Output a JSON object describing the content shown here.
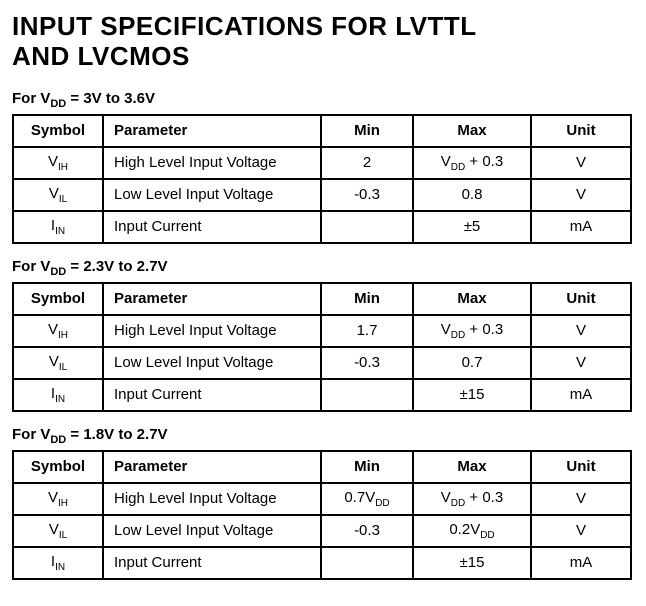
{
  "title_line1": "INPUT SPECIFICATIONS FOR LVTTL",
  "title_line2": "AND LVCMOS",
  "headers": {
    "symbol": "Symbol",
    "parameter": "Parameter",
    "min": "Min",
    "max": "Max",
    "unit": "Unit"
  },
  "sections": [
    {
      "caption_prefix": "For V",
      "caption_sub": "DD",
      "caption_suffix": " = 3V to 3.6V",
      "rows": [
        {
          "sym_pre": "V",
          "sym_sub": "IH",
          "param": "High Level Input Voltage",
          "min": "2",
          "max_pre": "V",
          "max_sub": "DD",
          "max_suffix": " + 0.3",
          "unit": "V"
        },
        {
          "sym_pre": "V",
          "sym_sub": "IL",
          "param": "Low Level Input Voltage",
          "min": "-0.3",
          "max_plain": "0.8",
          "unit": "V"
        },
        {
          "sym_pre": "I",
          "sym_sub": "IN",
          "param": "Input Current",
          "min": "",
          "max_plain": "±5",
          "unit": "mA"
        }
      ]
    },
    {
      "caption_prefix": "For V",
      "caption_sub": "DD",
      "caption_suffix": " = 2.3V to 2.7V",
      "rows": [
        {
          "sym_pre": "V",
          "sym_sub": "IH",
          "param": "High Level Input Voltage",
          "min": "1.7",
          "max_pre": "V",
          "max_sub": "DD",
          "max_suffix": " + 0.3",
          "unit": "V"
        },
        {
          "sym_pre": "V",
          "sym_sub": "IL",
          "param": "Low Level Input Voltage",
          "min": "-0.3",
          "max_plain": "0.7",
          "unit": "V"
        },
        {
          "sym_pre": "I",
          "sym_sub": "IN",
          "param": "Input Current",
          "min": "",
          "max_plain": "±15",
          "unit": "mA"
        }
      ]
    },
    {
      "caption_prefix": "For V",
      "caption_sub": "DD",
      "caption_suffix": " = 1.8V to 2.7V",
      "rows": [
        {
          "sym_pre": "V",
          "sym_sub": "IH",
          "param": "High Level Input Voltage",
          "min_pre": "0.7V",
          "min_sub": "DD",
          "max_pre": "V",
          "max_sub": "DD",
          "max_suffix": " + 0.3",
          "unit": "V"
        },
        {
          "sym_pre": "V",
          "sym_sub": "IL",
          "param": "Low Level Input Voltage",
          "min": "-0.3",
          "max_pre": "0.2V",
          "max_sub": "DD",
          "unit": "V"
        },
        {
          "sym_pre": "I",
          "sym_sub": "IN",
          "param": "Input Current",
          "min": "",
          "max_plain": "±15",
          "unit": "mA"
        }
      ]
    }
  ],
  "colors": {
    "text": "#000000",
    "background": "#ffffff",
    "border": "#000000"
  }
}
